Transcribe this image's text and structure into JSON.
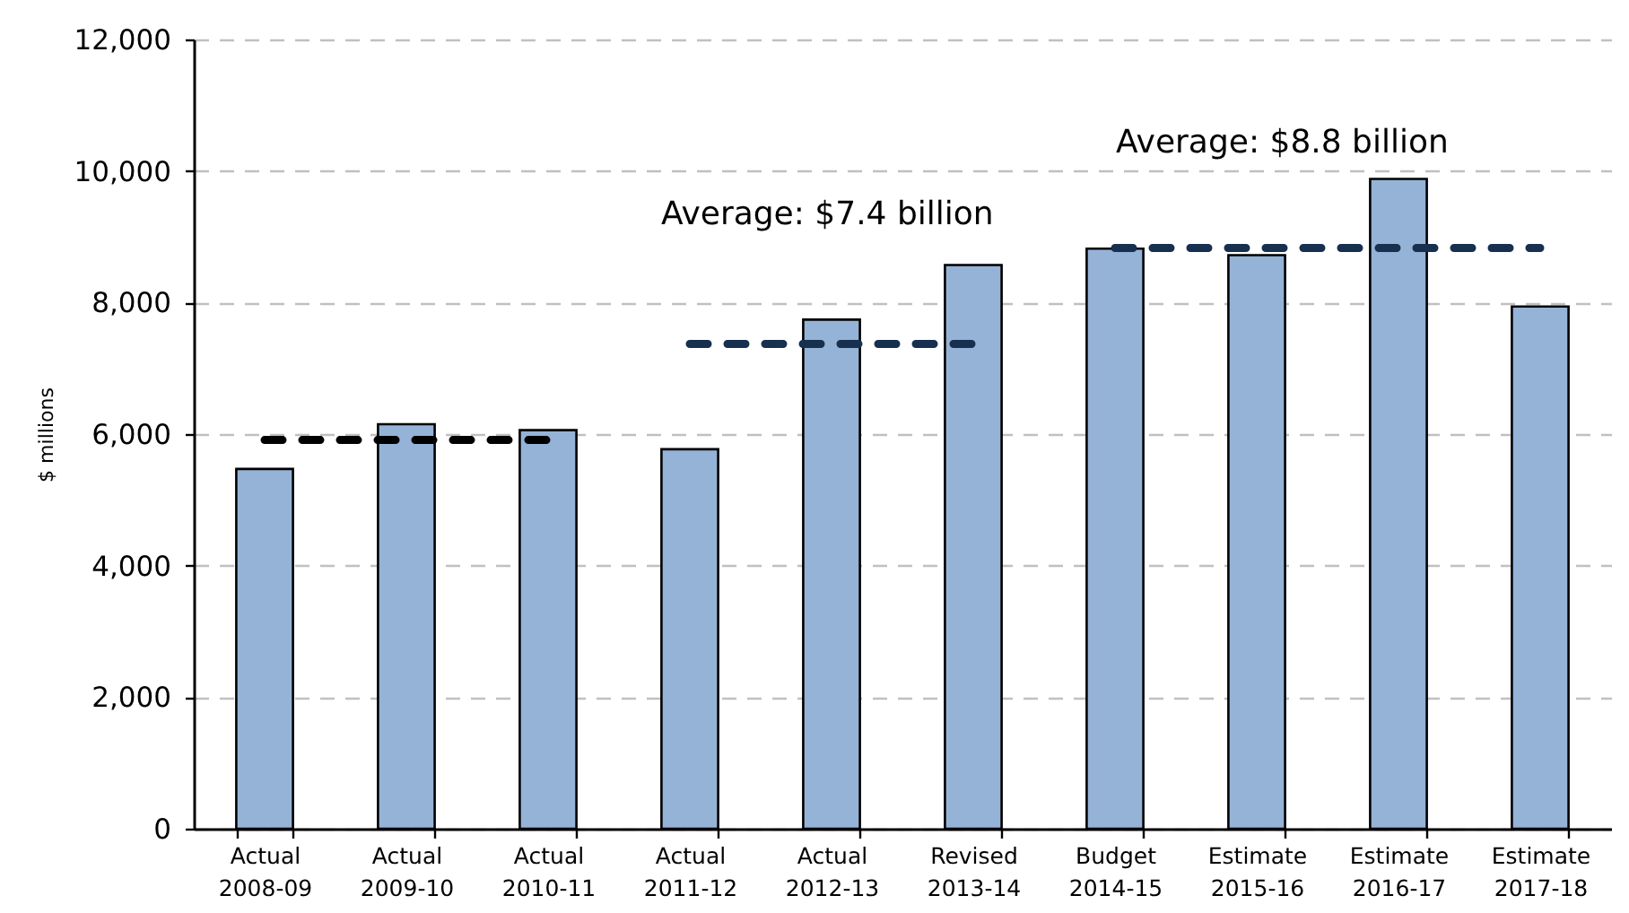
{
  "chart_data": {
    "type": "bar",
    "ylabel": "$ millions",
    "categories": [
      "Actual 2008-09",
      "Actual 2009-10",
      "Actual 2010-11",
      "Actual 2011-12",
      "Actual 2012-13",
      "Revised 2013-14",
      "Budget 2014-15",
      "Estimate 2015-16",
      "Estimate 2016-17",
      "Estimate 2017-18"
    ],
    "series": [
      {
        "color": "#95b3d7",
        "values": [
          5470,
          6150,
          6060,
          5770,
          7740,
          8570,
          8820,
          8720,
          9880,
          7940
        ]
      },
      {
        "type": "line",
        "x": [
          "Actual 2008-09",
          "Actual 2009-10",
          "Actual 2010-11"
        ],
        "values": [
          5910,
          5910,
          5910
        ],
        "color": "#000000",
        "line_style": "dashed"
      },
      {
        "type": "line",
        "x": [
          "Actual 2011-12",
          "Actual 2012-13",
          "Revised 2013-14"
        ],
        "values": [
          7370,
          7370,
          7370
        ],
        "color": "#17304f",
        "line_style": "dashed"
      },
      {
        "type": "line",
        "x": [
          "Budget 2014-15",
          "Estimate 2015-16",
          "Estimate 2016-17",
          "Estimate 2017-18"
        ],
        "values": [
          8830,
          8830,
          8830,
          8830
        ],
        "color": "#17304f",
        "line_style": "dashed"
      }
    ],
    "annotations": [
      "Average: $7.4 billion",
      "Average: $8.8 billion"
    ],
    "ylim": [
      0,
      12000
    ],
    "yticks": [
      0,
      {
        "value": 2000,
        "label": "2,000"
      },
      {
        "value": 4000,
        "label": "4,000"
      },
      {
        "value": 6000,
        "label": "6,000"
      },
      {
        "value": 8000,
        "label": "8,000"
      },
      {
        "value": 10000,
        "label": "10,000"
      },
      {
        "value": 12000,
        "label": "12,000"
      }
    ],
    "grid": "y"
  }
}
